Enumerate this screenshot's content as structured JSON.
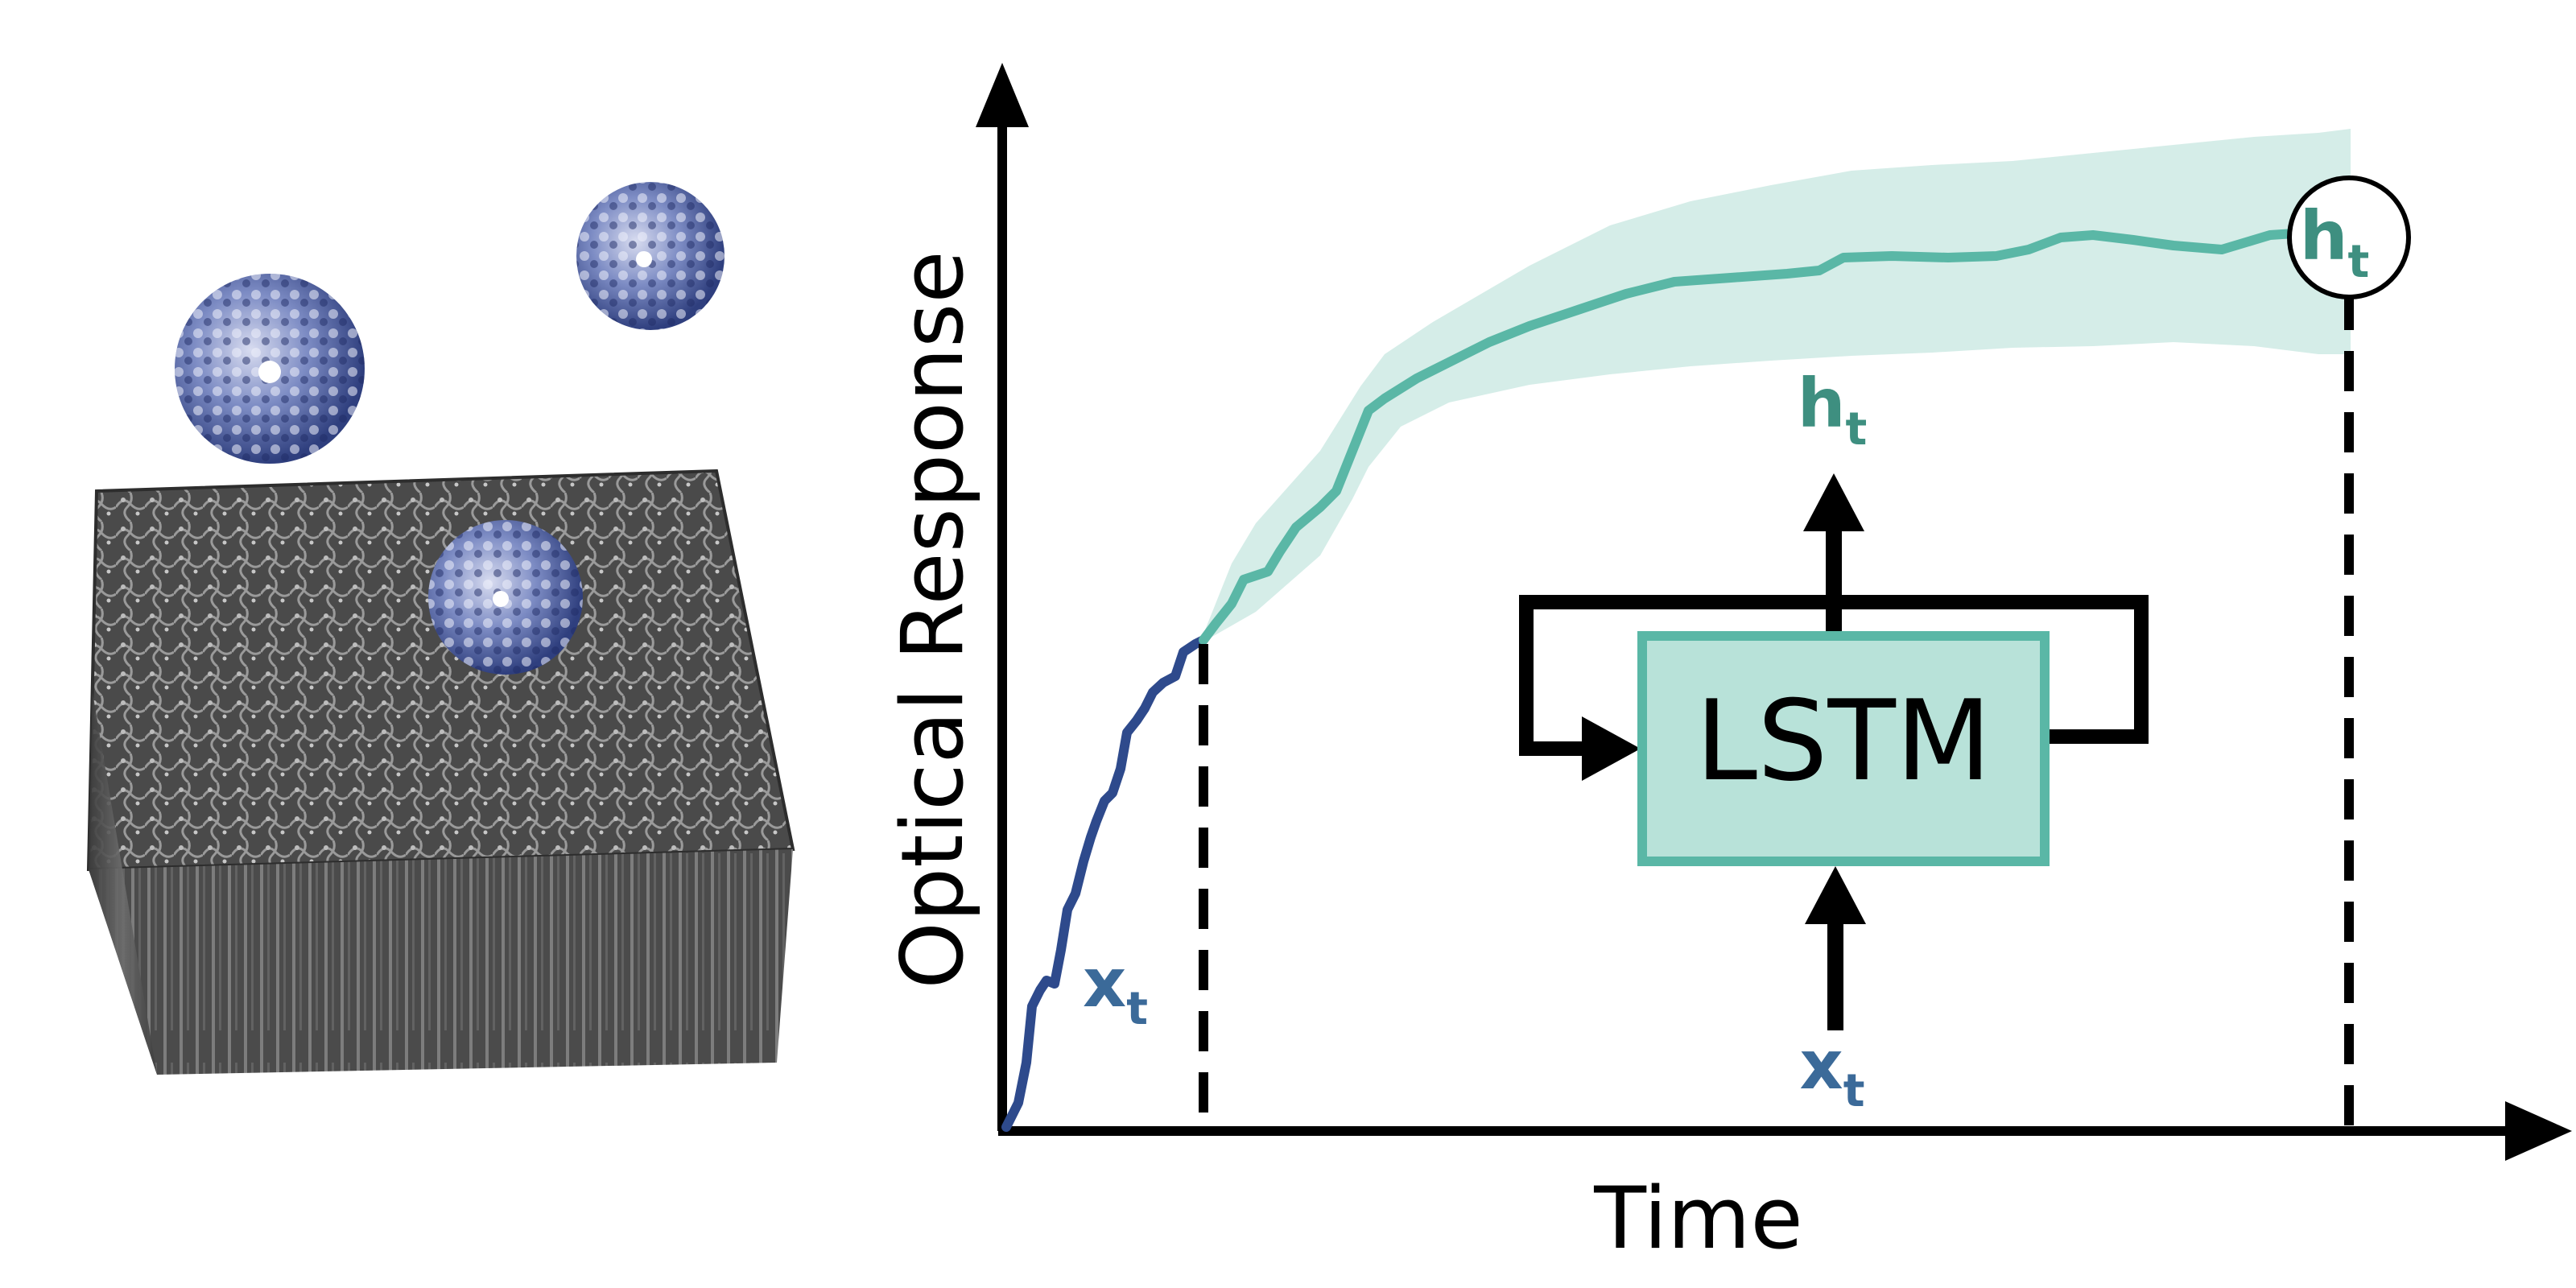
{
  "axes": {
    "ylabel": "Optical Response",
    "xlabel": "Time"
  },
  "labels": {
    "x_curve": "x",
    "x_curve_sub": "t",
    "h_circle": "h",
    "h_circle_sub": "t",
    "lstm": "LSTM",
    "h_out": "h",
    "h_out_sub": "t",
    "x_in": "x",
    "x_in_sub": "t"
  },
  "colors": {
    "input_curve": "#2e4a8c",
    "output_curve": "#5ab7a6",
    "band": "#d5ede8",
    "lstm_fill": "#b8e2d9",
    "lstm_stroke": "#5ab7a6",
    "h_text": "#3e8f80",
    "x_text": "#3b6a99",
    "protein": "#3a4f8f",
    "surface": "#505050"
  },
  "illustration": {
    "protein_icon": "protein-molecule-icon",
    "surface_icon": "porous-sensor-surface-icon"
  }
}
